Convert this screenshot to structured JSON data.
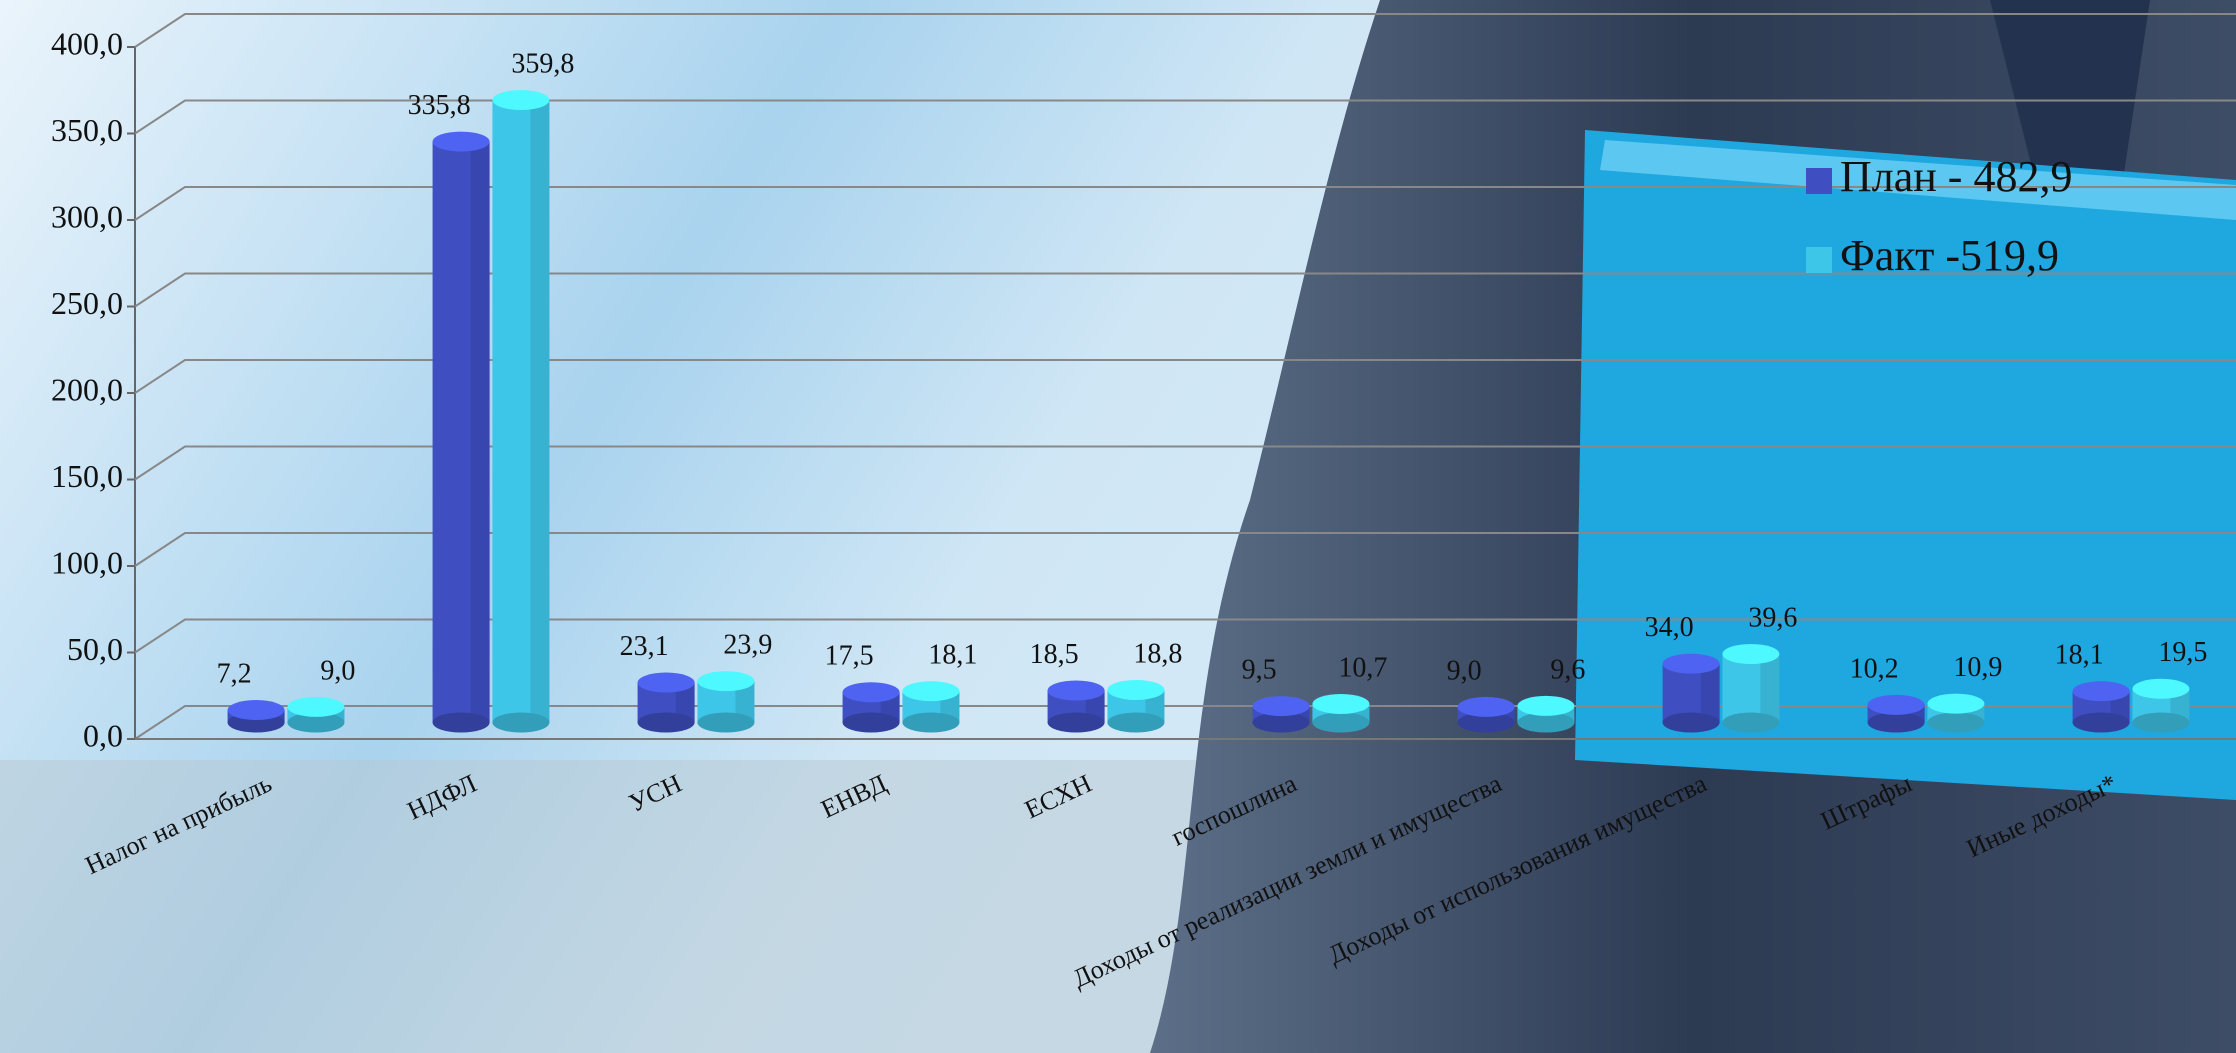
{
  "chart_data": {
    "type": "bar3d",
    "categories": [
      "Налог на прибыль",
      "НДФЛ",
      "УСН",
      "ЕНВД",
      "ЕСХН",
      "госпошлина",
      "Доходы от реализации земли и имущества",
      "Доходы от использования имущества",
      "Штрафы",
      "Иные доходы*"
    ],
    "series": [
      {
        "name": "План - 482,9",
        "color": "#3f4fc2",
        "values": [
          7.2,
          335.8,
          23.1,
          17.5,
          18.5,
          9.5,
          9.0,
          34.0,
          10.2,
          18.1
        ],
        "value_labels": [
          "7,2",
          "335,8",
          "23,1",
          "17,5",
          "18,5",
          "9,5",
          "9,0",
          "34,0",
          "10,2",
          "18,1"
        ]
      },
      {
        "name": "Факт -519,9",
        "color": "#3ec6e8",
        "values": [
          9.0,
          359.8,
          23.9,
          18.1,
          18.8,
          10.7,
          9.6,
          39.6,
          10.9,
          19.5
        ],
        "value_labels": [
          "9,0",
          "359,8",
          "23,9",
          "18,1",
          "18,8",
          "10,7",
          "9,6",
          "39,6",
          "10,9",
          "19,5"
        ]
      }
    ],
    "ylim": [
      0,
      400
    ],
    "yticks": [
      {
        "value": 0,
        "label": "0,0"
      },
      {
        "value": 50,
        "label": "50,0"
      },
      {
        "value": 100,
        "label": "100,0"
      },
      {
        "value": 150,
        "label": "150,0"
      },
      {
        "value": 200,
        "label": "200,0"
      },
      {
        "value": 250,
        "label": "250,0"
      },
      {
        "value": 300,
        "label": "300,0"
      },
      {
        "value": 350,
        "label": "350,0"
      },
      {
        "value": 400,
        "label": "400,0"
      }
    ],
    "grid": true
  }
}
